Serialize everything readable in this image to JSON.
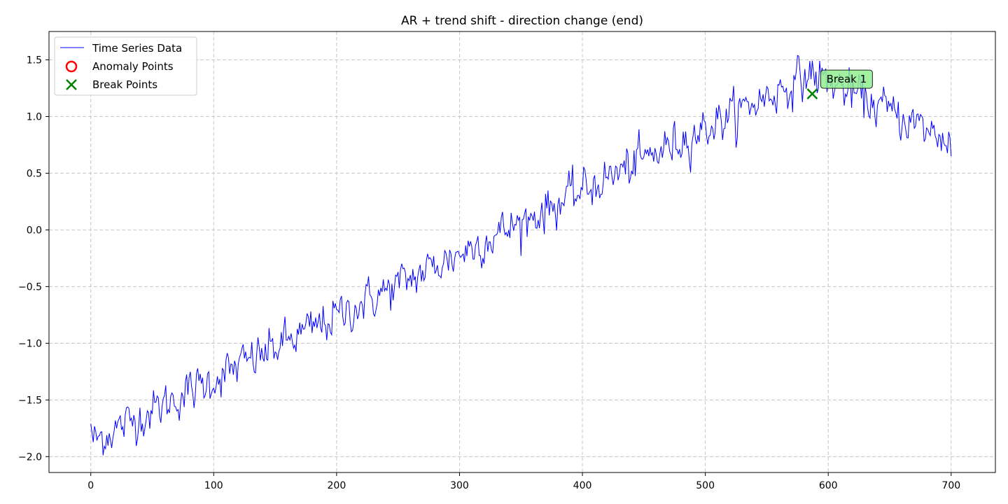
{
  "chart_data": {
    "type": "line",
    "title": "AR + trend shift - direction change (end)",
    "xlabel": "",
    "ylabel": "",
    "xlim": [
      -34,
      736
    ],
    "ylim": [
      -2.14,
      1.75
    ],
    "x_ticks": [
      0,
      100,
      200,
      300,
      400,
      500,
      600,
      700
    ],
    "y_ticks": [
      -2.0,
      -1.5,
      -1.0,
      -0.5,
      0.0,
      0.5,
      1.0,
      1.5
    ],
    "y_tick_labels": [
      "−2.0",
      "−1.5",
      "−1.0",
      "−0.5",
      "0.0",
      "0.5",
      "1.0",
      "1.5"
    ],
    "x_tick_labels": [
      "0",
      "100",
      "200",
      "300",
      "400",
      "500",
      "600",
      "700"
    ],
    "grid": true,
    "legend_position": "top-left",
    "legend": [
      {
        "label": "Time Series Data",
        "marker": "line",
        "color": "#0000ff"
      },
      {
        "label": "Anomaly Points",
        "marker": "circle",
        "color": "#ff0000"
      },
      {
        "label": "Break Points",
        "marker": "x",
        "color": "#008000"
      }
    ],
    "series": [
      {
        "name": "Time Series Data",
        "color": "#0000ff",
        "length": 701,
        "trend_up": {
          "x_start": 0,
          "y_start": -1.87,
          "x_end": 587,
          "y_end": 1.38
        },
        "trend_down": {
          "x_start": 587,
          "y_start": 1.38,
          "x_end": 700,
          "y_end": 0.78
        },
        "noise_std": 0.09,
        "ar_coef": 0.3,
        "end_value": 0.65,
        "start_value": -1.71
      }
    ],
    "anomaly_points": [],
    "break_points": [
      {
        "x": 587,
        "y": 1.2,
        "label": "Break 1"
      }
    ]
  }
}
